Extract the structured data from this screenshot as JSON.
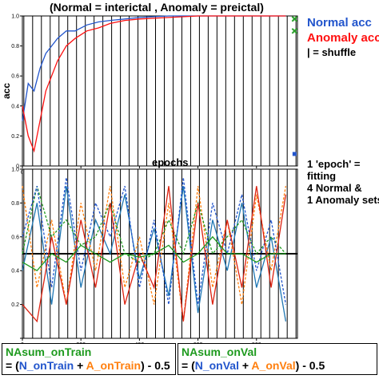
{
  "figure": {
    "title": "(Normal = interictal ,  Anomaly = preictal)",
    "legend_normal": "Normal acc",
    "legend_anomaly": "Anomaly acc",
    "legend_shuffle": "| = shuffle",
    "note": [
      "1 'epoch' =",
      "fitting",
      "4 Normal &",
      "1 Anomaly sets"
    ],
    "box_train": {
      "title": "NAsum_onTrain",
      "eq_open": "= (",
      "n": "N_onTrain",
      "plus": " + ",
      "a": "A_onTrain",
      "eq_close": ") - 0.5"
    },
    "box_val": {
      "title": "NAsum_onVal",
      "eq_open": "= (",
      "n": "N_onVal",
      "plus": " + ",
      "a": "A_onVal",
      "eq_close": ") - 0.5"
    }
  },
  "chart_data": [
    {
      "type": "line",
      "title": "(Normal = interictal ,  Anomaly = preictal)",
      "xlabel": "epochs",
      "ylabel": "acc",
      "xlim": [
        0,
        940
      ],
      "ylim": [
        0,
        1.0
      ],
      "xticks": [
        0,
        200,
        400,
        600,
        800
      ],
      "yticks": [
        0,
        0.2,
        0.4,
        0.6,
        0.8,
        1.0
      ],
      "ytick_labels": [
        "0",
        "0.2",
        "0.4",
        "0.6",
        "0.8",
        "1.0"
      ],
      "shuffle_epochs": [
        5,
        35,
        65,
        95,
        125,
        155,
        185,
        215,
        245,
        275,
        305,
        335,
        365,
        395,
        425,
        455,
        485,
        515,
        545,
        575,
        605,
        635,
        665,
        695,
        725,
        755,
        785,
        815,
        845,
        875,
        905,
        935
      ],
      "series": [
        {
          "name": "Normal acc",
          "color": "#2255cc",
          "x": [
            0,
            20,
            40,
            60,
            80,
            100,
            120,
            150,
            180,
            220,
            260,
            300,
            350,
            400,
            500,
            600,
            700,
            800,
            900
          ],
          "y": [
            0.3,
            0.55,
            0.5,
            0.65,
            0.75,
            0.8,
            0.85,
            0.9,
            0.9,
            0.94,
            0.96,
            0.97,
            0.98,
            0.99,
            1.0,
            1.0,
            1.0,
            1.0,
            1.0
          ]
        },
        {
          "name": "Anomaly acc",
          "color": "#ff1010",
          "x": [
            0,
            20,
            40,
            60,
            80,
            100,
            120,
            150,
            180,
            220,
            260,
            300,
            350,
            400,
            500,
            600,
            700,
            800,
            900
          ],
          "y": [
            0.4,
            0.2,
            0.1,
            0.3,
            0.5,
            0.6,
            0.7,
            0.8,
            0.85,
            0.9,
            0.92,
            0.95,
            0.97,
            0.98,
            0.99,
            1.0,
            1.0,
            1.0,
            1.0
          ]
        }
      ],
      "markers": [
        {
          "name": "Normal acc",
          "x": 930,
          "y": 0.08,
          "color": "#2255cc",
          "shape": "square"
        },
        {
          "name": "Anomaly acc",
          "x": 930,
          "y": 0.9,
          "color": "#2ca02c",
          "shape": "x"
        },
        {
          "name": "Anomaly acc",
          "x": 930,
          "y": 0.98,
          "color": "#2ca02c",
          "shape": "x"
        }
      ]
    },
    {
      "type": "line",
      "xlabel": "epochs",
      "ylabel": "",
      "xlim": [
        0,
        940
      ],
      "ylim": [
        0,
        1.0
      ],
      "xticks": [
        0,
        200,
        400,
        600,
        800
      ],
      "yticks": [
        0,
        0.2,
        0.4,
        0.6,
        0.8,
        1.0
      ],
      "ytick_labels": [
        "",
        "0.2",
        "0.4",
        "0.6",
        "0.8",
        "1.0"
      ],
      "shuffle_epochs": [
        5,
        35,
        65,
        95,
        125,
        155,
        185,
        215,
        245,
        275,
        305,
        335,
        365,
        395,
        425,
        455,
        485,
        515,
        545,
        575,
        605,
        635,
        665,
        695,
        725,
        755,
        785,
        815,
        845,
        875,
        905,
        935
      ],
      "baseline": 0.5,
      "series": [
        {
          "name": "N_onTrain",
          "color": "#1f77b4",
          "dash": false,
          "x": [
            0,
            50,
            100,
            150,
            200,
            250,
            300,
            350,
            400,
            450,
            500,
            550,
            600,
            650,
            700,
            750,
            800,
            850,
            900
          ],
          "y": [
            0.4,
            0.8,
            0.2,
            0.9,
            0.3,
            0.7,
            0.5,
            0.85,
            0.35,
            0.65,
            0.25,
            0.9,
            0.15,
            0.7,
            0.4,
            0.8,
            0.3,
            0.6,
            0.1
          ]
        },
        {
          "name": "A_onTrain",
          "color": "#ff7f0e",
          "dash": true,
          "x": [
            0,
            50,
            100,
            150,
            200,
            250,
            300,
            350,
            400,
            450,
            500,
            550,
            600,
            650,
            700,
            750,
            800,
            850,
            900
          ],
          "y": [
            0.9,
            0.3,
            0.7,
            0.2,
            0.8,
            0.4,
            0.9,
            0.3,
            0.6,
            0.2,
            0.8,
            0.1,
            0.9,
            0.3,
            0.7,
            0.2,
            0.85,
            0.4,
            0.9
          ]
        },
        {
          "name": "NAsum_onTrain",
          "color": "#1e9a1e",
          "dash": true,
          "x": [
            0,
            50,
            100,
            150,
            200,
            250,
            300,
            350,
            400,
            450,
            500,
            550,
            600,
            650,
            700,
            750,
            800,
            850,
            900
          ],
          "y": [
            0.5,
            0.9,
            0.6,
            0.7,
            0.55,
            0.6,
            0.8,
            0.5,
            0.45,
            0.5,
            0.7,
            0.5,
            0.8,
            0.5,
            0.6,
            0.7,
            0.5,
            0.6,
            0.5
          ]
        },
        {
          "name": "N_onVal",
          "color": "#2255cc",
          "dash": true,
          "x": [
            0,
            50,
            100,
            150,
            200,
            250,
            300,
            350,
            400,
            450,
            500,
            550,
            600,
            650,
            700,
            750,
            800,
            850,
            900
          ],
          "y": [
            0.6,
            0.9,
            0.3,
            0.95,
            0.4,
            0.8,
            0.6,
            0.9,
            0.3,
            0.7,
            0.2,
            0.95,
            0.2,
            0.8,
            0.5,
            0.85,
            0.4,
            0.7,
            0.2
          ]
        },
        {
          "name": "A_onVal",
          "color": "#dd2211",
          "dash": false,
          "x": [
            0,
            50,
            100,
            150,
            200,
            250,
            300,
            350,
            400,
            450,
            500,
            550,
            600,
            650,
            700,
            750,
            800,
            850,
            900
          ],
          "y": [
            0.2,
            0.1,
            0.6,
            0.2,
            0.7,
            0.3,
            0.8,
            0.2,
            0.5,
            0.3,
            0.9,
            0.1,
            0.8,
            0.2,
            0.7,
            0.3,
            0.9,
            0.3,
            0.85
          ]
        },
        {
          "name": "NAsum_onVal",
          "color": "#1e9a1e",
          "dash": false,
          "x": [
            0,
            50,
            100,
            150,
            200,
            250,
            300,
            350,
            400,
            450,
            500,
            550,
            600,
            650,
            700,
            750,
            800,
            850,
            900
          ],
          "y": [
            0.45,
            0.4,
            0.5,
            0.45,
            0.55,
            0.5,
            0.45,
            0.5,
            0.48,
            0.5,
            0.55,
            0.45,
            0.5,
            0.6,
            0.5,
            0.5,
            0.45,
            0.5,
            0.5
          ]
        }
      ]
    }
  ]
}
